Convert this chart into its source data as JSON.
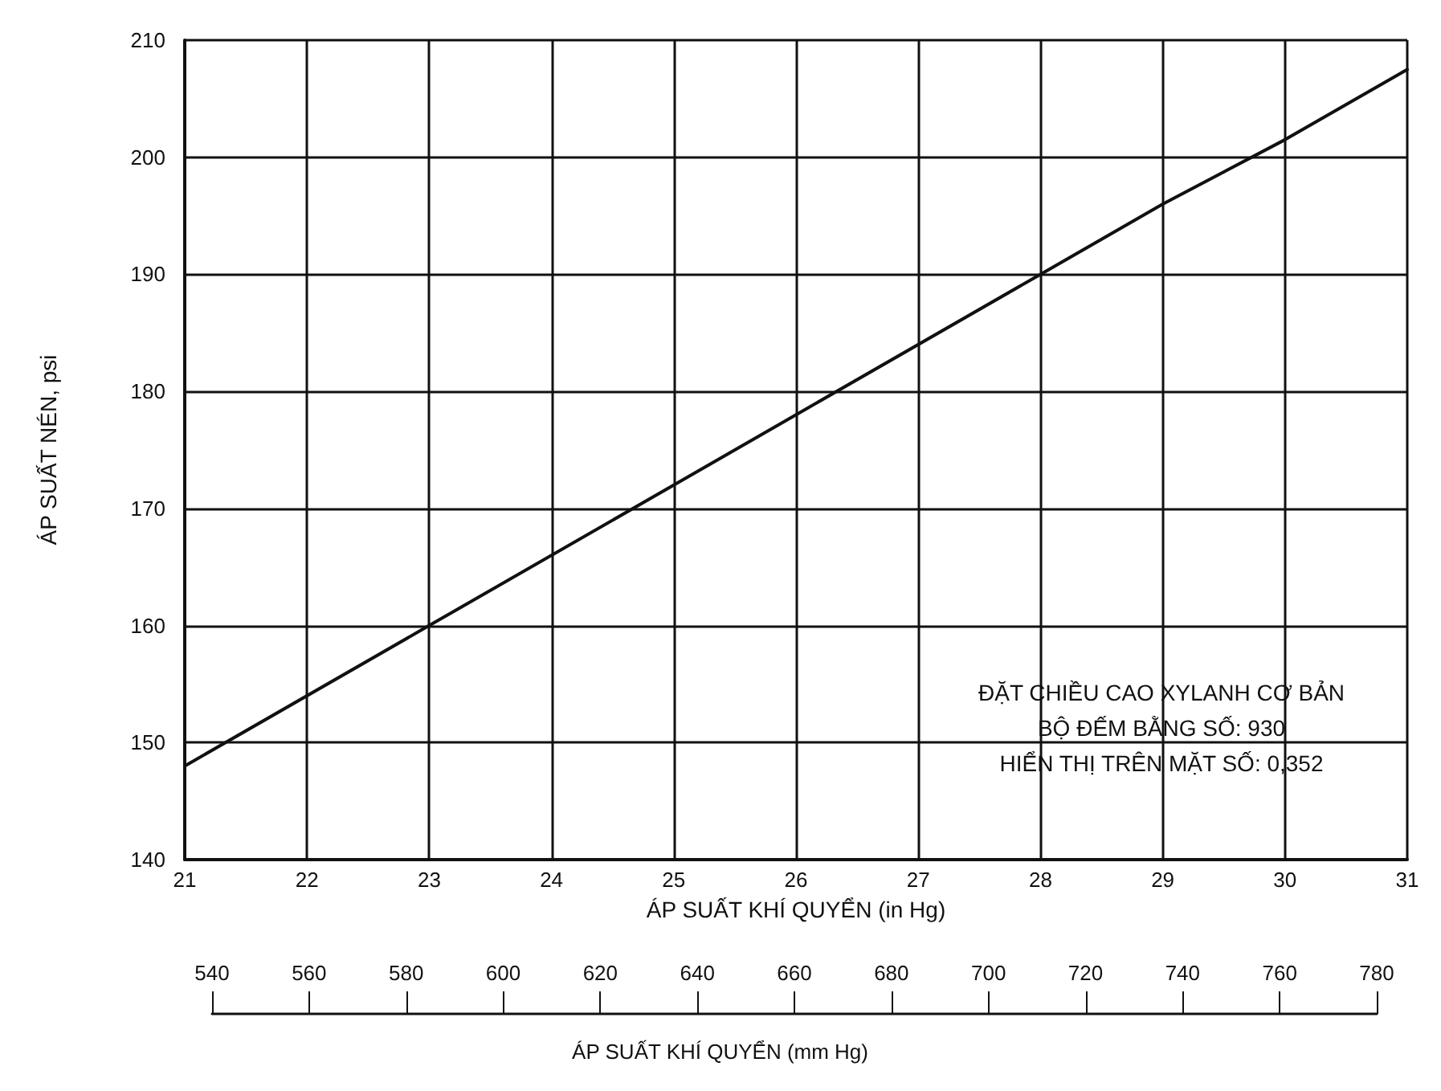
{
  "chart_data": {
    "type": "line",
    "xlabel": "ÁP SUẤT KHÍ QUYỂN (in Hg)",
    "ylabel": "ÁP SUẤT NÉN, psi",
    "x2label": "ÁP SUẤT KHÍ QUYỂN (mm Hg)",
    "x": [
      21,
      23,
      25,
      28,
      29,
      30,
      31
    ],
    "series": [
      {
        "color": "#111111",
        "values": [
          148,
          160,
          172,
          190,
          196,
          201.5,
          207.5
        ]
      }
    ],
    "xlim": [
      21,
      31
    ],
    "xticks": [
      21,
      22,
      23,
      24,
      25,
      26,
      27,
      28,
      29,
      30,
      31
    ],
    "ylim": [
      140,
      210
    ],
    "yticks": [
      140,
      150,
      160,
      170,
      180,
      190,
      200,
      210
    ],
    "x2lim": [
      540,
      780
    ],
    "x2ticks": [
      540,
      560,
      580,
      600,
      620,
      640,
      660,
      680,
      700,
      720,
      740,
      760,
      780
    ],
    "annotations": [
      "ĐẶT CHIỀU CAO XYLANH CƠ BẢN\nBỘ ĐẾM BẰNG SỐ: 930\nHIỂN THỊ TRÊN MẶT SỐ: 0,352"
    ],
    "grid": true,
    "marker": "none",
    "line_style": "solid"
  }
}
